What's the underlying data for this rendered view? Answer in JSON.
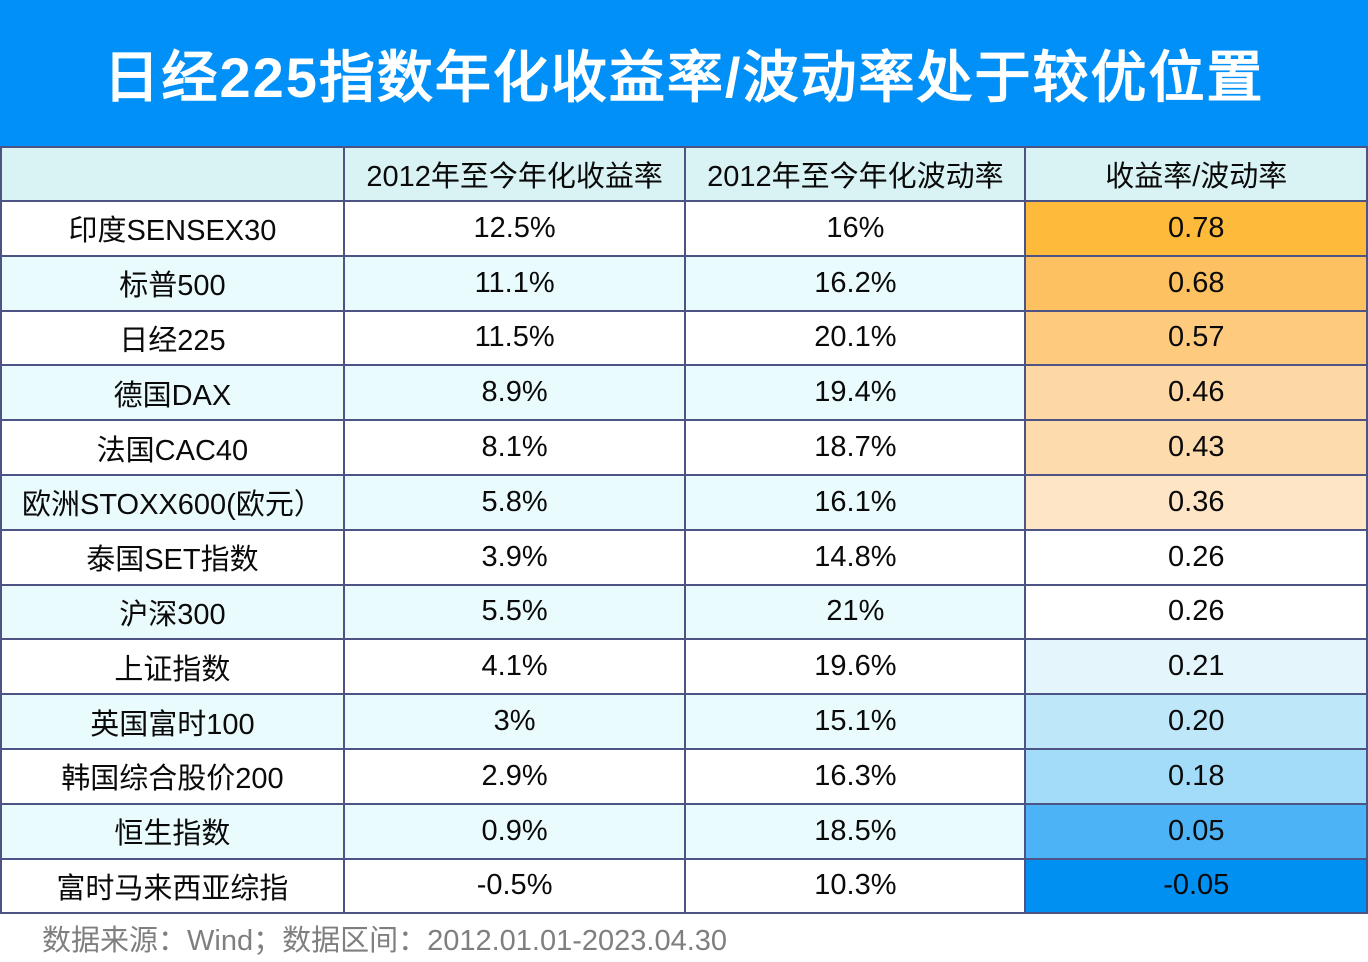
{
  "title": "日经225指数年化收益率/波动率处于较优位置",
  "table": {
    "columns": [
      "",
      "2012年至今年化收益率",
      "2012年至今年化波动率",
      "收益率/波动率"
    ],
    "rows": [
      {
        "name": "印度SENSEX30",
        "annualized_return": "12.5%",
        "annualized_volatility": "16%",
        "ratio": "0.78",
        "ratio_bg": "#FEBA3B"
      },
      {
        "name": "标普500",
        "annualized_return": "11.1%",
        "annualized_volatility": "16.2%",
        "ratio": "0.68",
        "ratio_bg": "#FEC161"
      },
      {
        "name": "日经225",
        "annualized_return": "11.5%",
        "annualized_volatility": "20.1%",
        "ratio": "0.57",
        "ratio_bg": "#FECB7E"
      },
      {
        "name": "德国DAX",
        "annualized_return": "8.9%",
        "annualized_volatility": "19.4%",
        "ratio": "0.46",
        "ratio_bg": "#FED8A4"
      },
      {
        "name": "法国CAC40",
        "annualized_return": "8.1%",
        "annualized_volatility": "18.7%",
        "ratio": "0.43",
        "ratio_bg": "#FEDBAD"
      },
      {
        "name": "欧洲STOXX600(欧元）",
        "annualized_return": "5.8%",
        "annualized_volatility": "16.1%",
        "ratio": "0.36",
        "ratio_bg": "#FEE5C6"
      },
      {
        "name": "泰国SET指数",
        "annualized_return": "3.9%",
        "annualized_volatility": "14.8%",
        "ratio": "0.26",
        "ratio_bg": "#FFFFFF"
      },
      {
        "name": "沪深300",
        "annualized_return": "5.5%",
        "annualized_volatility": "21%",
        "ratio": "0.26",
        "ratio_bg": "#FFFFFF"
      },
      {
        "name": "上证指数",
        "annualized_return": "4.1%",
        "annualized_volatility": "19.6%",
        "ratio": "0.21",
        "ratio_bg": "#E4F5FB"
      },
      {
        "name": "英国富时100",
        "annualized_return": "3%",
        "annualized_volatility": "15.1%",
        "ratio": "0.20",
        "ratio_bg": "#BEE8FA"
      },
      {
        "name": "韩国综合股价200",
        "annualized_return": "2.9%",
        "annualized_volatility": "16.3%",
        "ratio": "0.18",
        "ratio_bg": "#A3DCF9"
      },
      {
        "name": "恒生指数",
        "annualized_return": "0.9%",
        "annualized_volatility": "18.5%",
        "ratio": "0.05",
        "ratio_bg": "#4DB3F7"
      },
      {
        "name": "富时马来西亚综指",
        "annualized_return": "-0.5%",
        "annualized_volatility": "10.3%",
        "ratio": "-0.05",
        "ratio_bg": "#0090F2"
      }
    ]
  },
  "footer": "数据来源：Wind；数据区间：2012.01.01-2023.04.30",
  "colors": {
    "banner_bg": "#0090F7",
    "header_row_bg": "#D9F2F4",
    "row_bg": "#FFFFFF",
    "row_alt_bg": "#EAFBFD",
    "border_color": "#4E5386",
    "cell_text": "#0A0A0A",
    "footer_text": "#7F7F7F",
    "title_text": "#FFFFFF"
  },
  "chart_data": {
    "type": "table",
    "title": "日经225指数年化收益率/波动率处于较优位置",
    "columns": [
      "2012年至今年化收益率",
      "2012年至今年化波动率",
      "收益率/波动率"
    ],
    "categories": [
      "印度SENSEX30",
      "标普500",
      "日经225",
      "德国DAX",
      "法国CAC40",
      "欧洲STOXX600(欧元）",
      "泰国SET指数",
      "沪深300",
      "上证指数",
      "英国富时100",
      "韩国综合股价200",
      "恒生指数",
      "富时马来西亚综指"
    ],
    "series": [
      {
        "name": "2012年至今年化收益率",
        "unit": "%",
        "values": [
          12.5,
          11.1,
          11.5,
          8.9,
          8.1,
          5.8,
          3.9,
          5.5,
          4.1,
          3,
          2.9,
          0.9,
          -0.5
        ]
      },
      {
        "name": "2012年至今年化波动率",
        "unit": "%",
        "values": [
          16,
          16.2,
          20.1,
          19.4,
          18.7,
          16.1,
          14.8,
          21,
          19.6,
          15.1,
          16.3,
          18.5,
          10.3
        ]
      },
      {
        "name": "收益率/波动率",
        "unit": "",
        "values": [
          0.78,
          0.68,
          0.57,
          0.46,
          0.43,
          0.36,
          0.26,
          0.26,
          0.21,
          0.2,
          0.18,
          0.05,
          -0.05
        ]
      }
    ],
    "layout_hints": {
      "ratio_column_heatmap": "orange for high values fading to white near 0.26, then light-to-strong blue for lowest values",
      "source_note": "数据来源：Wind；数据区间：2012.01.01-2023.04.30"
    }
  }
}
